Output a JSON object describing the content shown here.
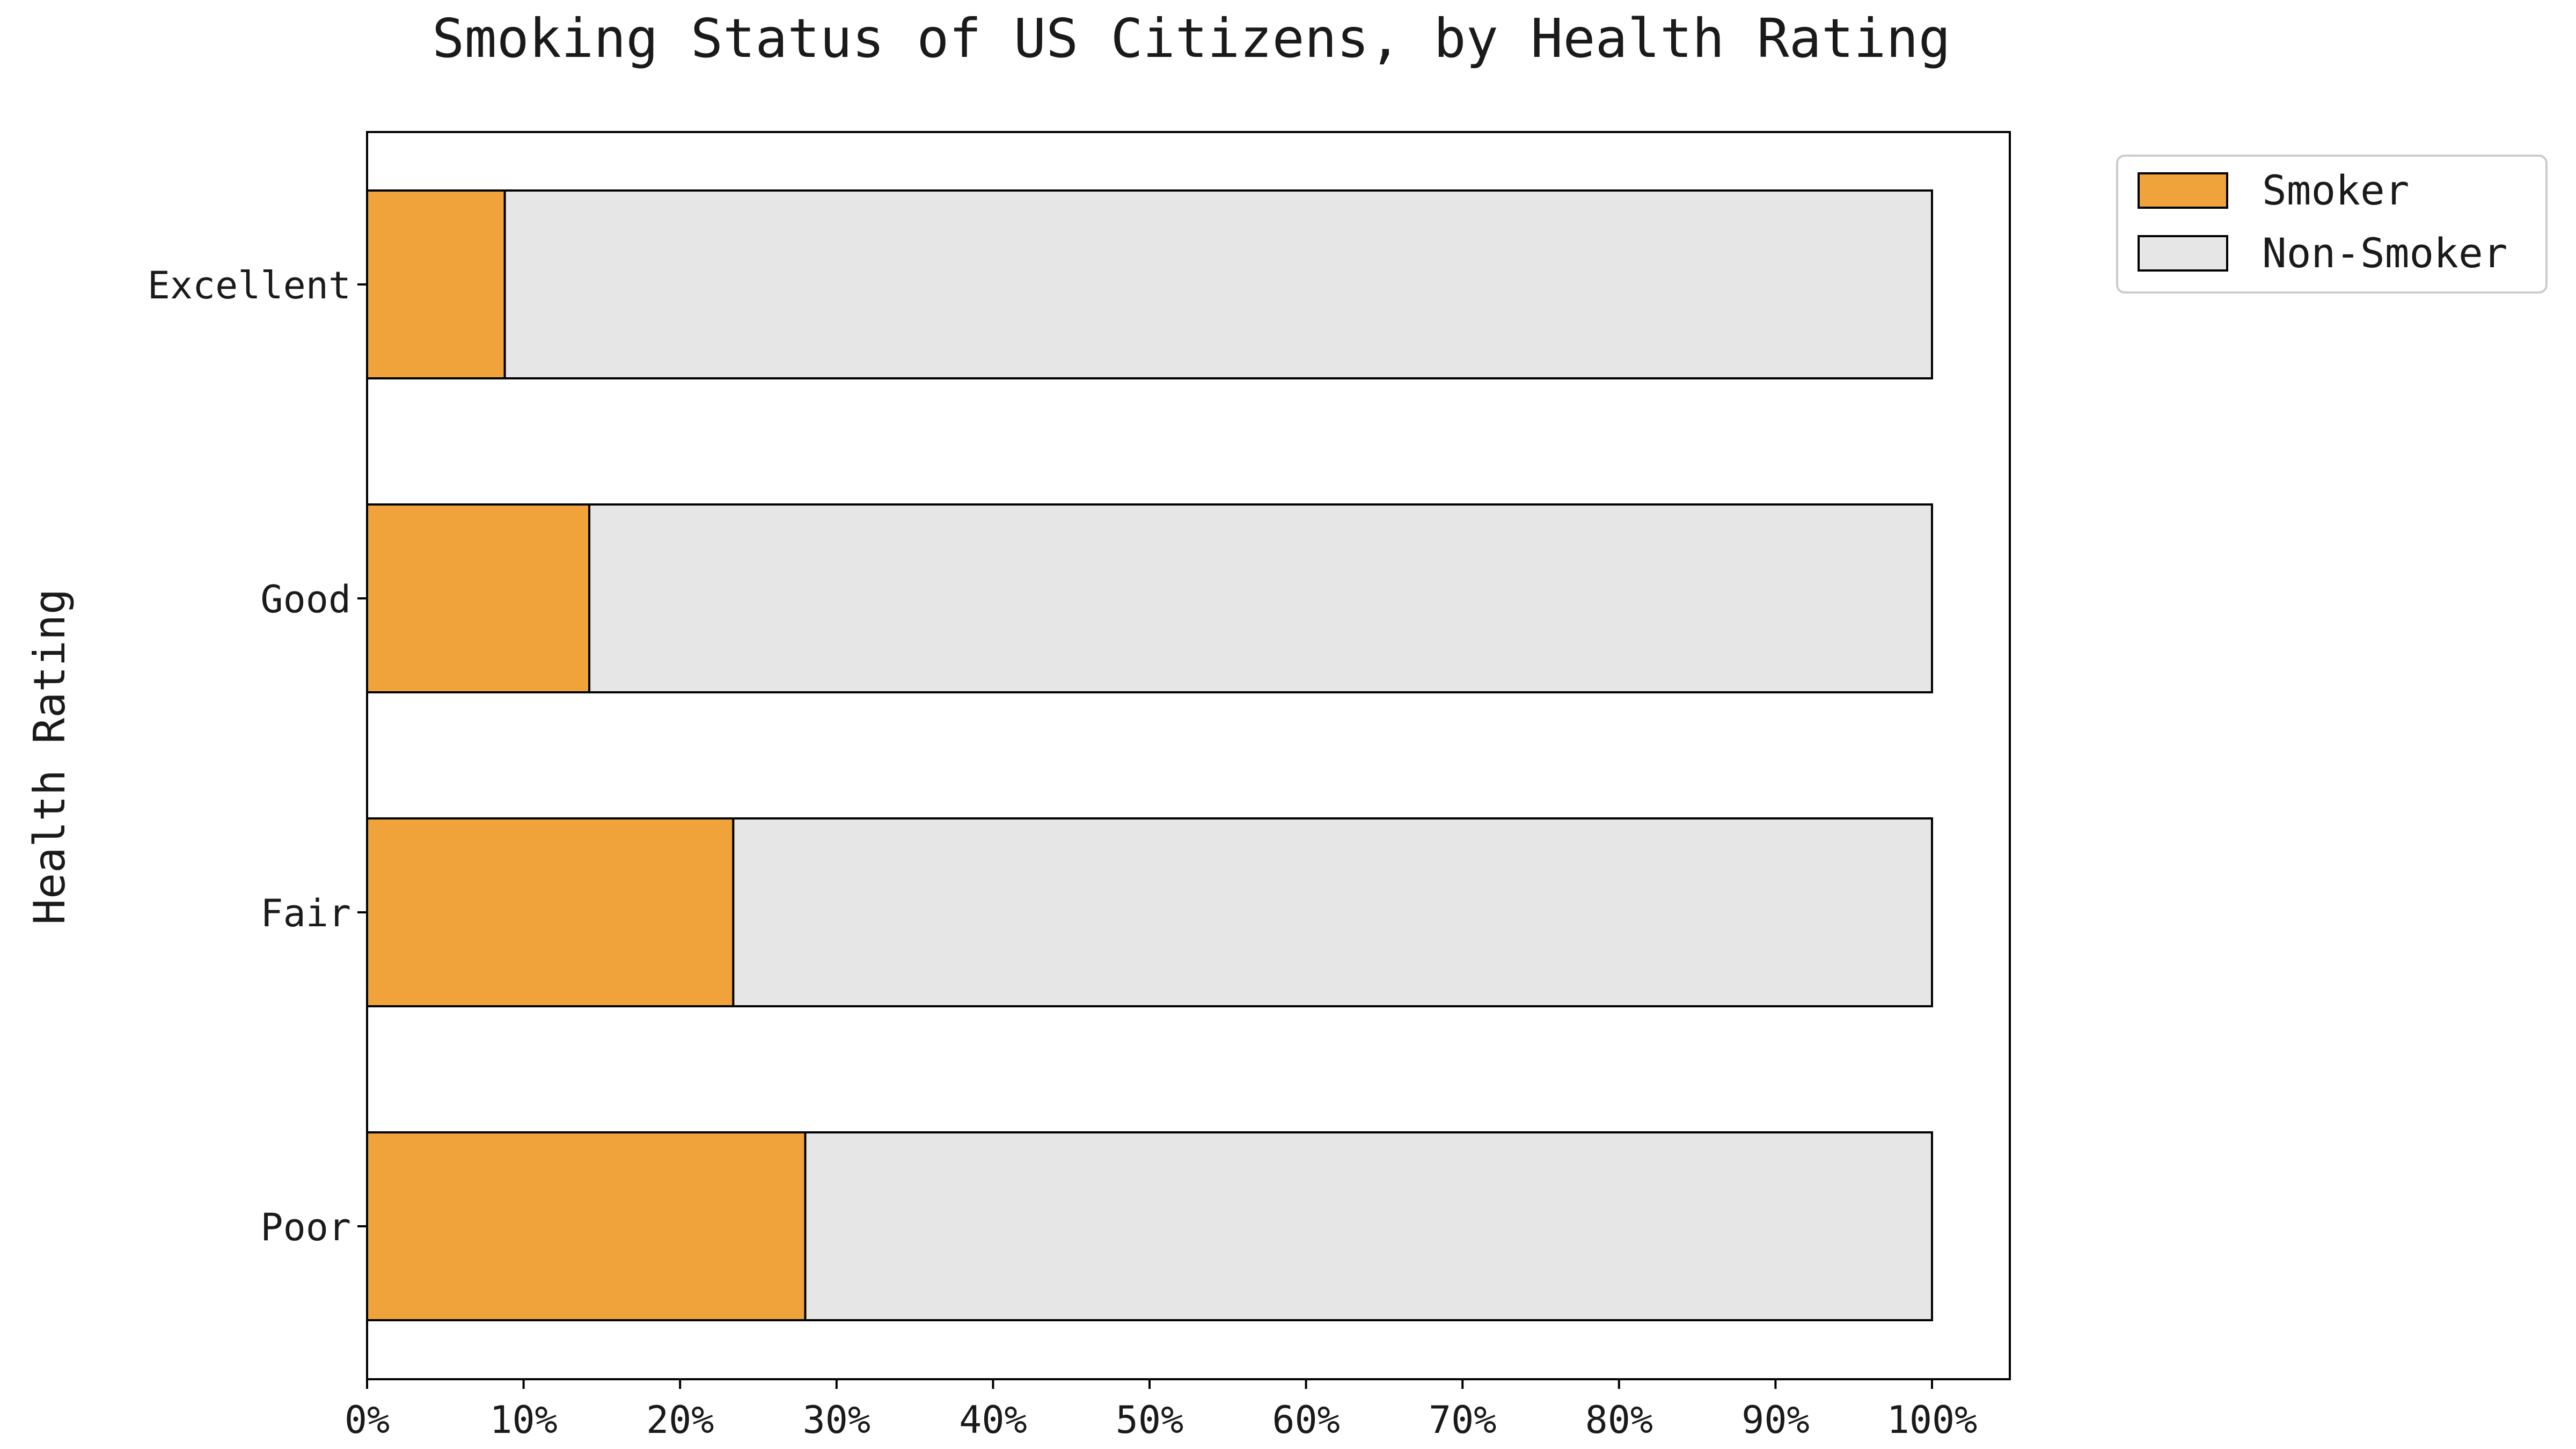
{
  "chart_data": {
    "type": "bar",
    "orientation": "horizontal",
    "stacked": true,
    "title": "Smoking Status of US Citizens, by Health Rating",
    "xlabel": "",
    "ylabel": "Health Rating",
    "xlim": [
      0,
      105
    ],
    "x_ticks": [
      "0%",
      "10%",
      "20%",
      "30%",
      "40%",
      "50%",
      "60%",
      "70%",
      "80%",
      "90%",
      "100%"
    ],
    "categories": [
      "Excellent",
      "Good",
      "Fair",
      "Poor"
    ],
    "series": [
      {
        "name": "Smoker",
        "color": "#F0A33A",
        "values": [
          8.8,
          14.2,
          23.4,
          28.0
        ]
      },
      {
        "name": "Non-Smoker",
        "color": "#E6E6E6",
        "values": [
          91.2,
          85.8,
          76.6,
          72.0
        ]
      }
    ],
    "legend": {
      "position": "upper-right-outside",
      "entries": [
        "Smoker",
        "Non-Smoker"
      ]
    },
    "grid": false
  }
}
